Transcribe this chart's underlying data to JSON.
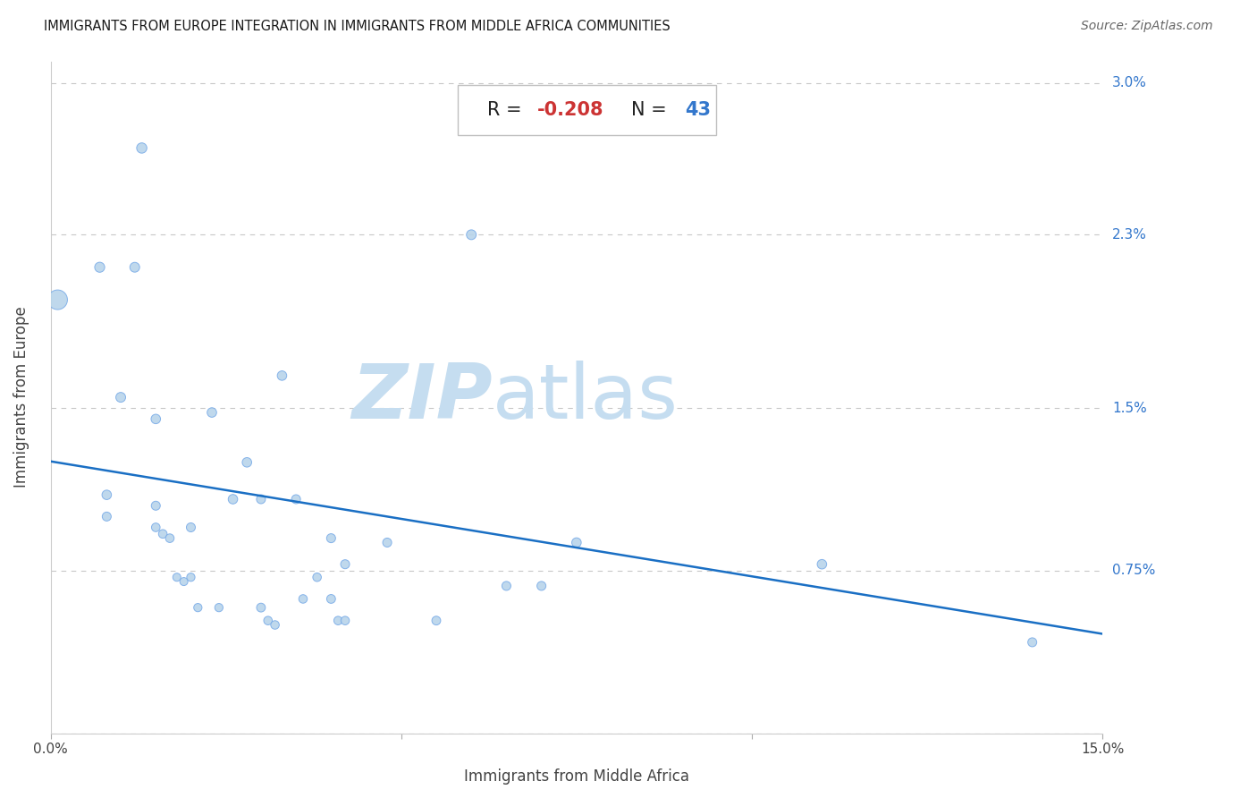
{
  "title": "IMMIGRANTS FROM EUROPE INTEGRATION IN IMMIGRANTS FROM MIDDLE AFRICA COMMUNITIES",
  "source": "Source: ZipAtlas.com",
  "xlabel": "Immigrants from Middle Africa",
  "ylabel": "Immigrants from Europe",
  "R_val": "-0.208",
  "N_val": "43",
  "xlim": [
    0.0,
    0.15
  ],
  "ylim": [
    0.0,
    0.031
  ],
  "ytick_values": [
    0.0,
    0.0075,
    0.015,
    0.023,
    0.03
  ],
  "ytick_labels": [
    "",
    "0.75%",
    "1.5%",
    "2.3%",
    "3.0%"
  ],
  "xtick_values": [
    0.0,
    0.05,
    0.1,
    0.15
  ],
  "xtick_labels": [
    "0.0%",
    "",
    "",
    "15.0%"
  ],
  "scatter_fill": "#b8d4ea",
  "scatter_edge": "#7aace8",
  "line_color": "#1a6fc4",
  "title_color": "#1a1a1a",
  "source_color": "#666666",
  "R_label_color": "#222222",
  "R_value_color": "#cc3333",
  "N_label_color": "#222222",
  "N_value_color": "#3377cc",
  "ytick_color": "#3377cc",
  "grid_color": "#c8c8c8",
  "watermark_zip_color": "#c5ddf0",
  "watermark_atlas_color": "#c5ddf0",
  "points": [
    [
      0.001,
      0.02
    ],
    [
      0.007,
      0.0215
    ],
    [
      0.008,
      0.011
    ],
    [
      0.008,
      0.01
    ],
    [
      0.01,
      0.0155
    ],
    [
      0.012,
      0.0215
    ],
    [
      0.013,
      0.027
    ],
    [
      0.015,
      0.0145
    ],
    [
      0.015,
      0.0105
    ],
    [
      0.015,
      0.0095
    ],
    [
      0.016,
      0.0092
    ],
    [
      0.017,
      0.009
    ],
    [
      0.018,
      0.0072
    ],
    [
      0.019,
      0.007
    ],
    [
      0.02,
      0.0095
    ],
    [
      0.02,
      0.0072
    ],
    [
      0.021,
      0.0058
    ],
    [
      0.023,
      0.0148
    ],
    [
      0.024,
      0.0058
    ],
    [
      0.026,
      0.0108
    ],
    [
      0.028,
      0.0125
    ],
    [
      0.03,
      0.0108
    ],
    [
      0.03,
      0.0058
    ],
    [
      0.031,
      0.0052
    ],
    [
      0.032,
      0.005
    ],
    [
      0.033,
      0.0165
    ],
    [
      0.035,
      0.0108
    ],
    [
      0.036,
      0.0062
    ],
    [
      0.038,
      0.0072
    ],
    [
      0.04,
      0.009
    ],
    [
      0.04,
      0.0062
    ],
    [
      0.041,
      0.0052
    ],
    [
      0.042,
      0.0052
    ],
    [
      0.042,
      0.0078
    ],
    [
      0.048,
      0.0088
    ],
    [
      0.055,
      0.0052
    ],
    [
      0.06,
      0.023
    ],
    [
      0.065,
      0.0068
    ],
    [
      0.067,
      0.028
    ],
    [
      0.07,
      0.0068
    ],
    [
      0.075,
      0.0088
    ],
    [
      0.11,
      0.0078
    ],
    [
      0.14,
      0.0042
    ]
  ],
  "bubble_sizes": [
    250,
    65,
    58,
    52,
    62,
    62,
    68,
    58,
    52,
    48,
    48,
    48,
    42,
    42,
    52,
    44,
    44,
    58,
    44,
    58,
    58,
    52,
    50,
    47,
    47,
    58,
    52,
    47,
    47,
    52,
    50,
    47,
    47,
    52,
    52,
    50,
    62,
    52,
    68,
    52,
    58,
    58,
    52
  ]
}
